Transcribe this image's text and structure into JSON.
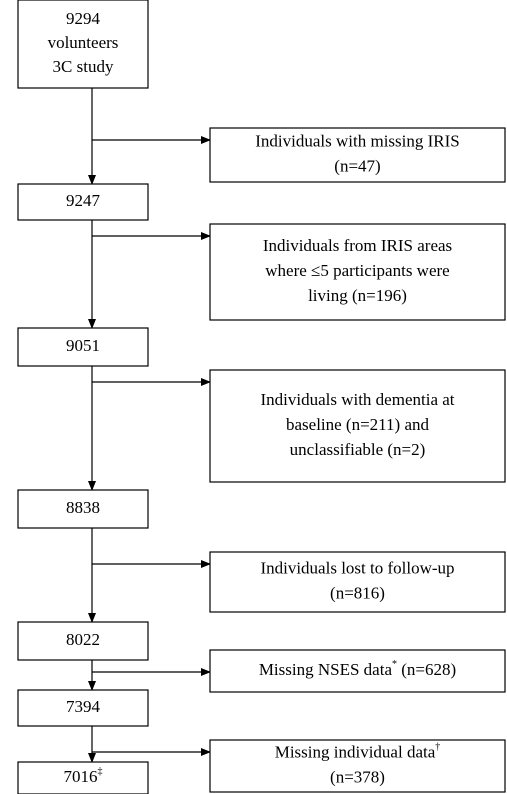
{
  "main": [
    {
      "lines": [
        "9294",
        "volunteers",
        "3C study"
      ]
    },
    {
      "lines": [
        "9247"
      ]
    },
    {
      "lines": [
        "9051"
      ]
    },
    {
      "lines": [
        "8838"
      ]
    },
    {
      "lines": [
        "8022"
      ]
    },
    {
      "lines": [
        "7394"
      ]
    },
    {
      "lines": [
        {
          "text": "7016",
          "sup": "‡"
        }
      ]
    }
  ],
  "exclusions": [
    {
      "lines": [
        "Individuals with missing IRIS",
        "(n=47)"
      ]
    },
    {
      "lines": [
        "Individuals from IRIS areas",
        "where ≤5 participants were",
        "living (n=196)"
      ]
    },
    {
      "lines": [
        "Individuals with dementia at",
        "baseline (n=211) and",
        "unclassifiable (n=2)"
      ]
    },
    {
      "lines": [
        "Individuals lost to follow-up",
        "(n=816)"
      ]
    },
    {
      "lines": [
        {
          "text": "Missing NSES data",
          "sup": "*",
          "after": " (n=628)"
        }
      ]
    },
    {
      "lines": [
        {
          "text": "Missing individual data",
          "sup": "†"
        },
        "(n=378)"
      ]
    }
  ]
}
